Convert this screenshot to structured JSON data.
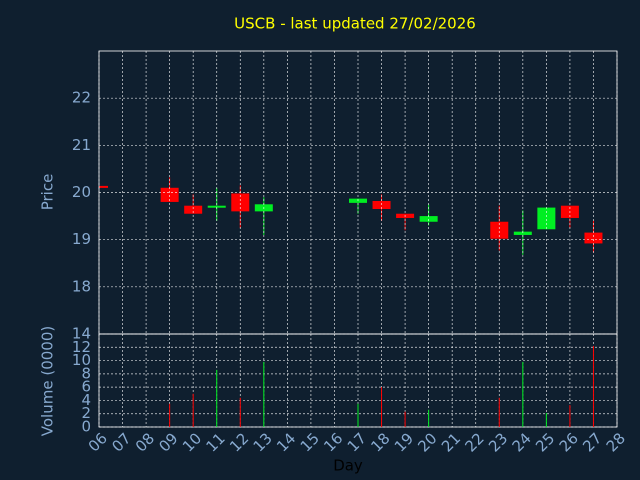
{
  "chart_data": [
    {
      "type": "candlestick",
      "title": "USCB - last updated 27/02/2026",
      "ylabel": "Price",
      "x": [
        6,
        9,
        10,
        11,
        12,
        13,
        17,
        18,
        19,
        20,
        23,
        24,
        25,
        26,
        27
      ],
      "open": [
        20.14,
        20.1,
        19.72,
        19.7,
        19.98,
        19.6,
        19.78,
        19.82,
        19.55,
        19.38,
        19.38,
        19.1,
        19.22,
        19.72,
        19.15
      ],
      "high": [
        20.14,
        20.32,
        19.96,
        20.1,
        20.15,
        19.9,
        19.87,
        19.96,
        19.55,
        19.75,
        19.72,
        19.62,
        19.68,
        19.72,
        19.4
      ],
      "low": [
        20.12,
        19.8,
        19.55,
        19.4,
        19.25,
        19.1,
        19.55,
        19.4,
        19.2,
        19.3,
        18.77,
        18.68,
        19.22,
        19.25,
        18.73
      ],
      "close": [
        20.12,
        19.8,
        19.55,
        19.72,
        19.6,
        19.75,
        19.87,
        19.65,
        19.46,
        19.5,
        19.02,
        19.17,
        19.68,
        19.46,
        18.92
      ],
      "up_color": "#00ee22",
      "down_color": "#ff0000",
      "ylim": [
        17,
        23
      ],
      "yticks": [
        18,
        19,
        20,
        21,
        22
      ],
      "grid": true
    },
    {
      "type": "bar",
      "ylabel": "Volume (0000)",
      "xlabel": "Day",
      "x": [
        9,
        10,
        11,
        12,
        13,
        17,
        18,
        19,
        20,
        23,
        24,
        25,
        26,
        27
      ],
      "values": [
        3.5,
        5,
        8.6,
        4.4,
        9.8,
        3.5,
        6,
        2.3,
        2.6,
        4.4,
        9.8,
        2.1,
        3.3,
        12.2
      ],
      "colors": [
        "#ff0000",
        "#ff0000",
        "#00ee22",
        "#ff0000",
        "#00ee22",
        "#00ee22",
        "#ff0000",
        "#ff0000",
        "#00ee22",
        "#ff0000",
        "#00ee22",
        "#00ee22",
        "#ff0000",
        "#ff0000"
      ],
      "xlim": [
        6,
        28
      ],
      "xticks": [
        {
          "value": 6,
          "label": "06"
        },
        {
          "value": 7,
          "label": "07"
        },
        {
          "value": 8,
          "label": "08"
        },
        {
          "value": 9,
          "label": "09"
        },
        10,
        11,
        12,
        13,
        14,
        15,
        16,
        17,
        18,
        19,
        20,
        21,
        22,
        23,
        24,
        25,
        26,
        27,
        28
      ],
      "ylim": [
        0,
        14
      ],
      "yticks": [
        0,
        2,
        4,
        6,
        8,
        10,
        12,
        14
      ],
      "grid": true
    }
  ]
}
